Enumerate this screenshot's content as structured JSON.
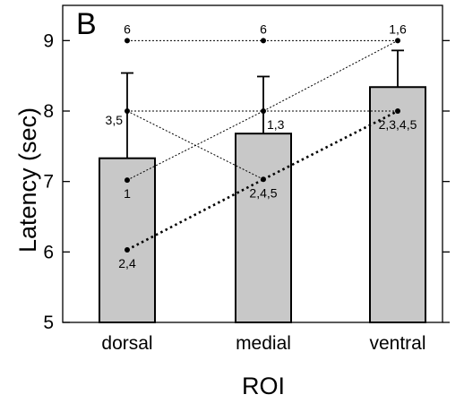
{
  "chart_data": {
    "type": "bar",
    "panel_label": "B",
    "categories": [
      "dorsal",
      "medial",
      "ventral"
    ],
    "values": [
      7.33,
      7.68,
      8.34
    ],
    "error_upper": [
      8.54,
      8.49,
      8.86
    ],
    "xlabel": "ROI",
    "ylabel": "Latency (sec)",
    "ylim": [
      5,
      9.5
    ],
    "yticks": [
      5,
      6,
      7,
      8,
      9
    ],
    "grid": false,
    "bar_color": "#c8c8c8",
    "lines": [
      {
        "label": "6",
        "values": [
          9.0,
          9.0,
          9.0
        ],
        "style": "dotted-thin"
      },
      {
        "label": "1",
        "values": [
          7.02,
          8.0,
          9.0
        ],
        "style": "dotted-thin"
      },
      {
        "label": "3,5",
        "values": [
          8.0,
          8.0,
          8.0
        ],
        "style": "dotted-thin"
      },
      {
        "label": "2,4",
        "values": [
          6.03,
          7.03,
          8.0
        ],
        "style": "dotted-thick"
      },
      {
        "label": "3,5 cross",
        "values": [
          8.0,
          7.03,
          null
        ],
        "style": "dotted-thin"
      }
    ],
    "point_labels": [
      {
        "text": "6",
        "cat": 0,
        "y": 9.0,
        "anchor": "above"
      },
      {
        "text": "6",
        "cat": 1,
        "y": 9.0,
        "anchor": "above"
      },
      {
        "text": "1,6",
        "cat": 2,
        "y": 9.0,
        "anchor": "above"
      },
      {
        "text": "3,5",
        "cat": 0,
        "y": 8.0,
        "anchor": "left"
      },
      {
        "text": "1,3",
        "cat": 1,
        "y": 8.0,
        "anchor": "below-right"
      },
      {
        "text": "2,3,4,5",
        "cat": 2,
        "y": 8.0,
        "anchor": "below"
      },
      {
        "text": "1",
        "cat": 0,
        "y": 7.02,
        "anchor": "below"
      },
      {
        "text": "2,4,5",
        "cat": 1,
        "y": 7.03,
        "anchor": "below"
      },
      {
        "text": "2,4",
        "cat": 0,
        "y": 6.03,
        "anchor": "below"
      }
    ]
  }
}
